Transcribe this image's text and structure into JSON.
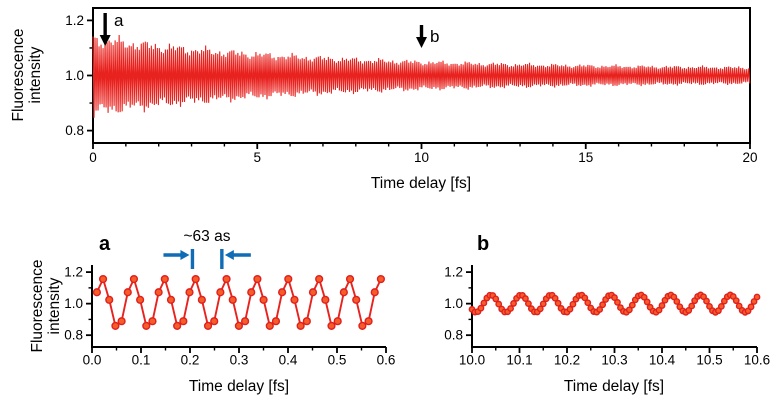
{
  "colors": {
    "signal_red": "#e8231f",
    "marker_fill": "#f45c28",
    "marker_edge": "#e01f1f",
    "annotation_blue": "#0f6cb5",
    "axis": "#000000"
  },
  "chart_data": [
    {
      "id": "overview",
      "type": "line",
      "title": "",
      "xlabel": "Time delay [fs]",
      "ylabel": "Fluorescence intensity",
      "ylabel_lines": [
        "Fluorescence",
        "intensity"
      ],
      "xlim": [
        0,
        20
      ],
      "ylim": [
        0.755,
        1.245
      ],
      "xticks_major": [
        0,
        5,
        10,
        15,
        20
      ],
      "xtick_labels": [
        "0",
        "5",
        "10",
        "15",
        "20"
      ],
      "xticks_minor": [
        1,
        2,
        3,
        4,
        6,
        7,
        8,
        9,
        11,
        12,
        13,
        14,
        16,
        17,
        18,
        19
      ],
      "yticks_major": [
        0.8,
        1.0,
        1.2
      ],
      "ytick_labels": [
        "0.8",
        "1.0",
        "1.2"
      ],
      "yticks_minor": [
        0.9,
        1.1
      ],
      "grid": false,
      "legend": null,
      "signal": {
        "description": "Rapid fluorescence-intensity oscillation (period ~63 as) around mean 1.0 whose amplitude decays with time delay",
        "mean": 1.0,
        "period_fs": 0.063,
        "envelope": {
          "baseline": 0.028,
          "coef": 0.135,
          "tau_fs": 6.8
        },
        "beat": {
          "base": 0.85,
          "depth": 0.15,
          "period1_fs": 1.31,
          "phase1": 0.6,
          "period2_fs": 0.53
        },
        "intensity_range_at_0fs": [
          0.84,
          1.16
        ],
        "intensity_range_at_20fs": [
          0.97,
          1.03
        ]
      },
      "arrows": [
        {
          "label": "a",
          "t_fs": 0.37
        },
        {
          "label": "b",
          "t_fs": 10.0
        }
      ]
    },
    {
      "id": "zoom_a",
      "type": "line",
      "panel_letter": "a",
      "xlabel": "Time delay [fs]",
      "ylabel": "Fluorescence intensity",
      "ylabel_lines": [
        "Fluorescence",
        "intensity"
      ],
      "xlim": [
        0,
        0.6
      ],
      "ylim": [
        0.725,
        1.245
      ],
      "xticks_major": [
        0,
        0.1,
        0.2,
        0.3,
        0.4,
        0.5,
        0.6
      ],
      "xtick_labels": [
        "0.0",
        "0.1",
        "0.2",
        "0.3",
        "0.4",
        "0.5",
        "0.6"
      ],
      "xticks_minor": [
        0.05,
        0.15,
        0.25,
        0.35,
        0.45,
        0.55
      ],
      "yticks_major": [
        0.8,
        1.0,
        1.2
      ],
      "ytick_labels": [
        "0.8",
        "1.0",
        "1.2"
      ],
      "yticks_minor": [
        0.9,
        1.1
      ],
      "grid": false,
      "signal": {
        "description": "Zoom at region a: sinusoidal oscillation, period ~63 as, sampled data points",
        "mean": 1.0,
        "amplitude": 0.158,
        "period_fs": 0.063,
        "peak_time_fs": 0.021,
        "sample_start_fs": 0.01,
        "sample_step_fs": 0.0126,
        "sample_end_fs": 0.59
      },
      "annotation": {
        "text": "~63 as",
        "bar1_fs": 0.205,
        "bar2_fs": 0.265
      }
    },
    {
      "id": "zoom_b",
      "type": "line",
      "panel_letter": "b",
      "xlabel": "Time delay [fs]",
      "xlim": [
        10.0,
        10.6
      ],
      "ylim": [
        0.725,
        1.245
      ],
      "xticks_major": [
        10.0,
        10.1,
        10.2,
        10.3,
        10.4,
        10.5,
        10.6
      ],
      "xtick_labels": [
        "10.0",
        "10.1",
        "10.2",
        "10.3",
        "10.4",
        "10.5",
        "10.6"
      ],
      "xticks_minor": [
        10.05,
        10.15,
        10.25,
        10.35,
        10.45,
        10.55
      ],
      "yticks_major": [
        0.8,
        1.0,
        1.2
      ],
      "ytick_labels": [
        "0.8",
        "1.0",
        "1.2"
      ],
      "yticks_minor": [
        0.9,
        1.1
      ],
      "grid": false,
      "signal": {
        "description": "Zoom at region b: weaker sinusoidal oscillation, same ~63 as period, densely sampled data points",
        "mean": 1.0,
        "amplitude": 0.055,
        "period_fs": 0.063,
        "peak_time_fs": 10.04,
        "sample_start_fs": 10.0,
        "sample_step_fs": 0.00625,
        "sample_end_fs": 10.6
      }
    }
  ]
}
